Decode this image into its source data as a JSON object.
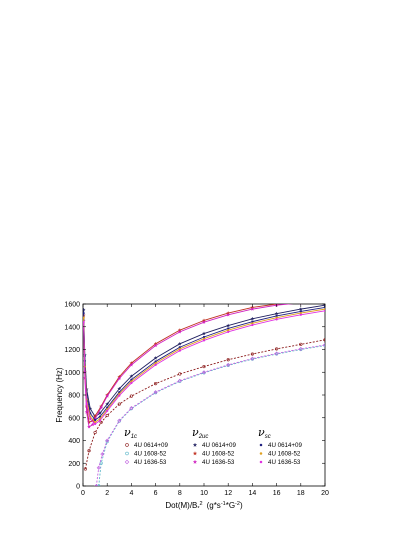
{
  "chart_data": {
    "type": "line",
    "xlabel": "Dot(M)/B",
    "xlabel_sub": "*",
    "xlabel_sup": "2",
    "xlabel_units": "(g*s",
    "xlabel_units_sup1": "-1",
    "xlabel_units_mid": "*G",
    "xlabel_units_sup2": "-2",
    "xlabel_units_end": ")",
    "ylabel": "Frequency (Hz)",
    "xlim": [
      0,
      20
    ],
    "ylim": [
      0,
      1600
    ],
    "xticks": [
      "0",
      "2",
      "4",
      "6",
      "8",
      "10",
      "12",
      "14",
      "16",
      "18",
      "20"
    ],
    "yticks": [
      "0",
      "200",
      "400",
      "600",
      "800",
      "1000",
      "1200",
      "1400",
      "1600"
    ],
    "grid": false,
    "legend_position": "lower-right",
    "legend_groups": [
      {
        "symbol": "ν",
        "subscript": "1c",
        "entries": [
          {
            "name": "4U 0614+09",
            "marker": "open-circle",
            "color": "#8B1A1A"
          },
          {
            "name": "4U 1608-52",
            "marker": "open-circle",
            "color": "#5DB8C9"
          },
          {
            "name": "4U 1636-53",
            "marker": "open-diamond",
            "color": "#C060E0"
          }
        ]
      },
      {
        "symbol": "ν",
        "subscript": "2uc",
        "entries": [
          {
            "name": "4U 0614+09",
            "marker": "filled-star",
            "color": "#202060"
          },
          {
            "name": "4U 1608-52",
            "marker": "filled-star",
            "color": "#C03020"
          },
          {
            "name": "4U 1636-53",
            "marker": "filled-star",
            "color": "#D020C0"
          }
        ]
      },
      {
        "symbol": "ν",
        "subscript": "sc",
        "entries": [
          {
            "name": "4U 0614+09",
            "marker": "filled-dot",
            "color": "#202080"
          },
          {
            "name": "4U 1608-52",
            "marker": "filled-dot",
            "color": "#E0A020"
          },
          {
            "name": "4U 1636-53",
            "marker": "filled-dot",
            "color": "#E030E0"
          }
        ]
      }
    ],
    "series": [
      {
        "group": "1c",
        "source": "4U 0614+09",
        "color": "#8B1A1A",
        "marker": "open-circle",
        "x": [
          0.2,
          0.5,
          1,
          1.5,
          2,
          3,
          4,
          6,
          8,
          10,
          12,
          14,
          16,
          18,
          20
        ],
        "values": [
          150,
          310,
          470,
          560,
          620,
          720,
          790,
          900,
          985,
          1050,
          1110,
          1160,
          1205,
          1245,
          1285
        ]
      },
      {
        "group": "1c",
        "source": "4U 1608-52",
        "color": "#5DB8C9",
        "marker": "open-circle",
        "x": [
          1.3,
          1.5,
          2,
          3,
          4,
          6,
          8,
          10,
          12,
          14,
          16,
          18,
          20
        ],
        "values": [
          0,
          200,
          390,
          570,
          680,
          820,
          920,
          995,
          1060,
          1115,
          1160,
          1200,
          1235
        ]
      },
      {
        "group": "1c",
        "source": "4U 1636-53",
        "color": "#C060E0",
        "marker": "open-diamond",
        "x": [
          1.1,
          1.3,
          1.6,
          2,
          3,
          4,
          6,
          8,
          10,
          12,
          14,
          16,
          18,
          20
        ],
        "values": [
          0,
          160,
          280,
          400,
          575,
          685,
          825,
          925,
          1000,
          1065,
          1120,
          1165,
          1205,
          1240
        ]
      },
      {
        "group": "2uc",
        "source": "4U 0614+09",
        "color": "#202060",
        "marker": "filled-star",
        "x": [
          0.05,
          0.15,
          0.3,
          0.6,
          1,
          1.4,
          2,
          3,
          4,
          6,
          8,
          10,
          12,
          14,
          16,
          18,
          20
        ],
        "values": [
          1550,
          1150,
          850,
          680,
          610,
          640,
          720,
          855,
          965,
          1125,
          1250,
          1340,
          1410,
          1470,
          1515,
          1555,
          1590
        ]
      },
      {
        "group": "2uc",
        "source": "4U 1608-52",
        "color": "#C03020",
        "marker": "filled-star",
        "x": [
          0.05,
          0.15,
          0.3,
          0.5,
          0.8,
          1,
          1.5,
          2,
          3,
          4,
          6,
          8,
          10,
          12,
          14,
          16,
          18,
          20
        ],
        "values": [
          1500,
          1000,
          700,
          560,
          575,
          615,
          700,
          800,
          960,
          1080,
          1250,
          1370,
          1455,
          1520,
          1570,
          1600,
          1620,
          1640
        ]
      },
      {
        "group": "2uc",
        "source": "4U 1636-53",
        "color": "#D020C0",
        "marker": "filled-star",
        "x": [
          0.05,
          0.15,
          0.3,
          0.5,
          0.8,
          1,
          1.5,
          2,
          3,
          4,
          6,
          8,
          10,
          12,
          14,
          16,
          18,
          20
        ],
        "values": [
          1450,
          950,
          650,
          520,
          540,
          590,
          690,
          790,
          945,
          1065,
          1235,
          1355,
          1440,
          1505,
          1555,
          1590,
          1610,
          1630
        ]
      },
      {
        "group": "sc",
        "source": "4U 0614+09",
        "color": "#202080",
        "marker": "filled-dot",
        "x": [
          0.05,
          0.15,
          0.3,
          0.6,
          1,
          1.4,
          2,
          3,
          4,
          6,
          8,
          10,
          12,
          14,
          16,
          18,
          20
        ],
        "values": [
          1520,
          1100,
          800,
          640,
          580,
          610,
          690,
          825,
          935,
          1095,
          1220,
          1310,
          1385,
          1445,
          1495,
          1535,
          1570
        ]
      },
      {
        "group": "sc",
        "source": "4U 1608-52",
        "color": "#E0A020",
        "marker": "filled-dot",
        "x": [
          0.05,
          0.15,
          0.3,
          0.6,
          1,
          1.4,
          2,
          3,
          4,
          6,
          8,
          10,
          12,
          14,
          16,
          18,
          20
        ],
        "values": [
          1480,
          1050,
          760,
          610,
          560,
          590,
          675,
          810,
          920,
          1080,
          1205,
          1295,
          1370,
          1430,
          1480,
          1520,
          1555
        ]
      },
      {
        "group": "sc",
        "source": "4U 1636-53",
        "color": "#E030E0",
        "marker": "filled-dot",
        "x": [
          0.05,
          0.15,
          0.3,
          0.6,
          1,
          1.4,
          2,
          3,
          4,
          6,
          8,
          10,
          12,
          14,
          16,
          18,
          20
        ],
        "values": [
          1440,
          1000,
          720,
          590,
          545,
          575,
          660,
          795,
          905,
          1065,
          1190,
          1280,
          1355,
          1415,
          1465,
          1505,
          1540
        ]
      }
    ]
  }
}
